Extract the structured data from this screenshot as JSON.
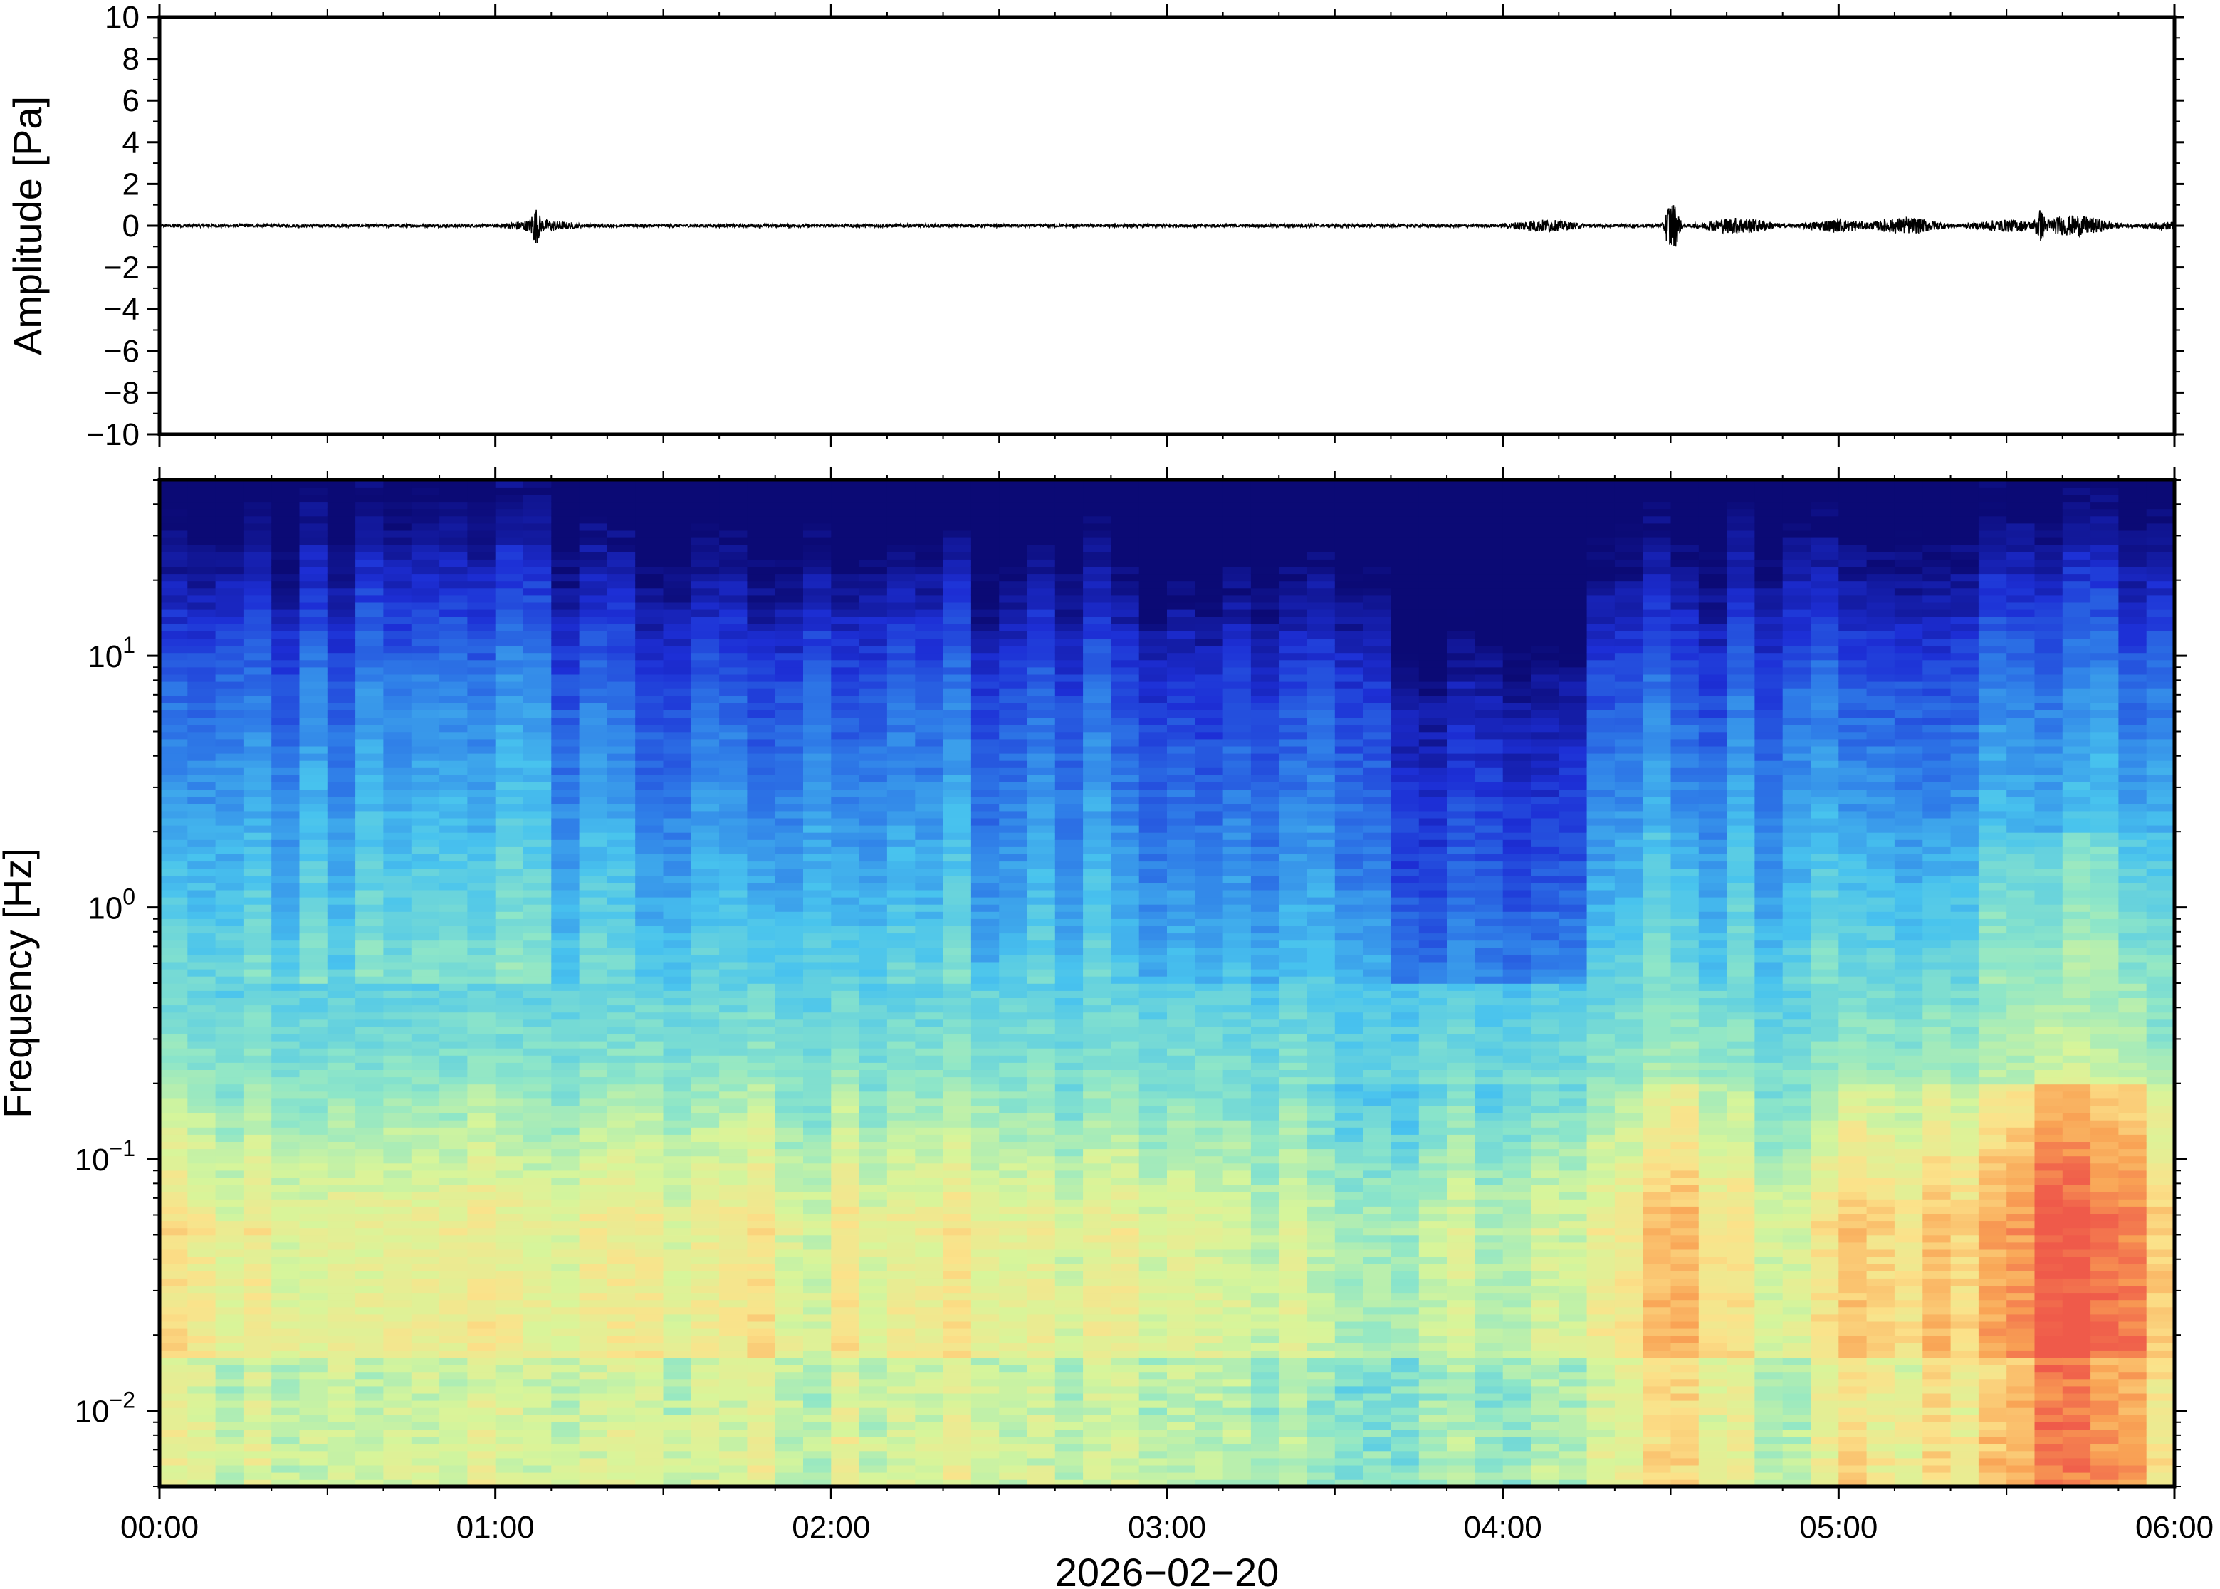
{
  "chart_data": [
    {
      "type": "line",
      "title": "",
      "ylabel": "Amplitude [Pa]",
      "ylim": [
        -10,
        10
      ],
      "yticks": [
        10,
        8,
        6,
        4,
        2,
        0,
        -2,
        -4,
        -6,
        -8,
        -10
      ],
      "ytick_labels": [
        "10",
        "8",
        "6",
        "4",
        "2",
        "0",
        "−2",
        "−4",
        "−6",
        "−8",
        "−10"
      ],
      "xlim_hours": [
        0,
        6
      ],
      "series": [
        {
          "description_of_shape": "near-zero waveform trace with small bursts",
          "x_hours": [
            0.0,
            0.5,
            1.0,
            1.12,
            1.13,
            1.5,
            2.0,
            2.5,
            3.0,
            3.5,
            4.0,
            4.12,
            4.5,
            4.51,
            4.7,
            5.0,
            5.2,
            5.5,
            5.6,
            5.7,
            6.0
          ],
          "y": [
            0.0,
            0.05,
            0.0,
            0.9,
            -0.3,
            0.0,
            0.05,
            0.0,
            0.0,
            0.0,
            0.0,
            0.3,
            1.3,
            -1.1,
            0.4,
            0.3,
            0.4,
            0.3,
            0.8,
            0.5,
            0.2
          ]
        }
      ],
      "color": "#000000"
    },
    {
      "type": "heatmap",
      "title": "",
      "ylabel": "Frequency [Hz]",
      "xlabel": "2026−02−20",
      "yscale": "log",
      "ylim_hz": [
        0.005,
        50
      ],
      "yticks": [
        {
          "base": "10",
          "exp": "1",
          "value": 10
        },
        {
          "base": "10",
          "exp": "0",
          "value": 1
        },
        {
          "base": "10",
          "exp": "−1",
          "value": 0.1
        },
        {
          "base": "10",
          "exp": "−2",
          "value": 0.01
        }
      ],
      "xlim_hours": [
        0,
        6
      ],
      "xticks": [
        "00:00",
        "01:00",
        "02:00",
        "03:00",
        "04:00",
        "05:00",
        "06:00"
      ],
      "colormap": "jet",
      "colormap_stops": [
        "#0b0a75",
        "#1d2fd6",
        "#2f7ee8",
        "#48c3ee",
        "#8ee6c8",
        "#d7f59a",
        "#fbe28a",
        "#f9a455",
        "#ef5a4a"
      ],
      "notable_columns_hours": [
        4.5,
        5.6,
        5.8
      ],
      "description_of_shape": "power decreases with frequency; high energy (orange/red) below 0.1 Hz, deep blue above ~10 Hz; stronger low-frequency bursts near 04:30 and after 05:00"
    }
  ]
}
